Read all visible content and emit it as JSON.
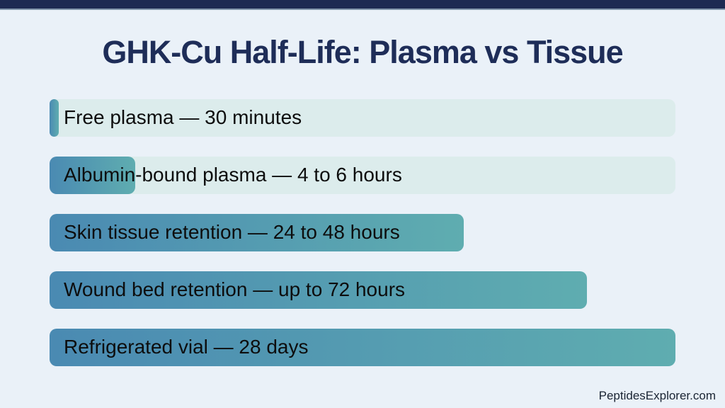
{
  "title": "GHK-Cu Half-Life: Plasma vs Tissue",
  "footer": {
    "text": "PeptidesExplorer.com"
  },
  "theme": {
    "background": "#eaf1f8",
    "header_bar_color": "#1d2a52",
    "header_bar_underline": "#7e92a8",
    "title_color": "#1e2d58",
    "bar_gradient_start": "#4a8ab2",
    "bar_gradient_end": "#5fadb0",
    "track_color": "#dcecec",
    "label_color": "#0d0d0d",
    "footer_color": "#1a2433"
  },
  "chart_data": {
    "type": "bar",
    "orientation": "horizontal",
    "title": "GHK-Cu Half-Life: Plasma vs Tissue",
    "xlabel": "",
    "ylabel": "",
    "grid": false,
    "legend": false,
    "axes_visible": false,
    "bars": [
      {
        "category": "Free plasma",
        "value_text": "30 minutes",
        "label": "Free plasma — 30 minutes",
        "hours_min": 0.5,
        "hours_max": 0.5,
        "fraction": 0.015,
        "track": true
      },
      {
        "category": "Albumin-bound plasma",
        "value_text": "4 to 6 hours",
        "label": "Albumin-bound plasma — 4 to 6 hours",
        "hours_min": 4,
        "hours_max": 6,
        "fraction": 0.137,
        "track": true
      },
      {
        "category": "Skin tissue retention",
        "value_text": "24 to 48 hours",
        "label": "Skin tissue retention — 24 to 48 hours",
        "hours_min": 24,
        "hours_max": 48,
        "fraction": 0.662,
        "track": false
      },
      {
        "category": "Wound bed retention",
        "value_text": "up to 72 hours",
        "label": "Wound bed retention — up to 72 hours",
        "hours_min": 72,
        "hours_max": 72,
        "fraction": 0.859,
        "track": false
      },
      {
        "category": "Refrigerated vial",
        "value_text": "28 days",
        "label": "Refrigerated vial — 28 days",
        "hours_min": 672,
        "hours_max": 672,
        "fraction": 1.0,
        "track": false
      }
    ]
  }
}
